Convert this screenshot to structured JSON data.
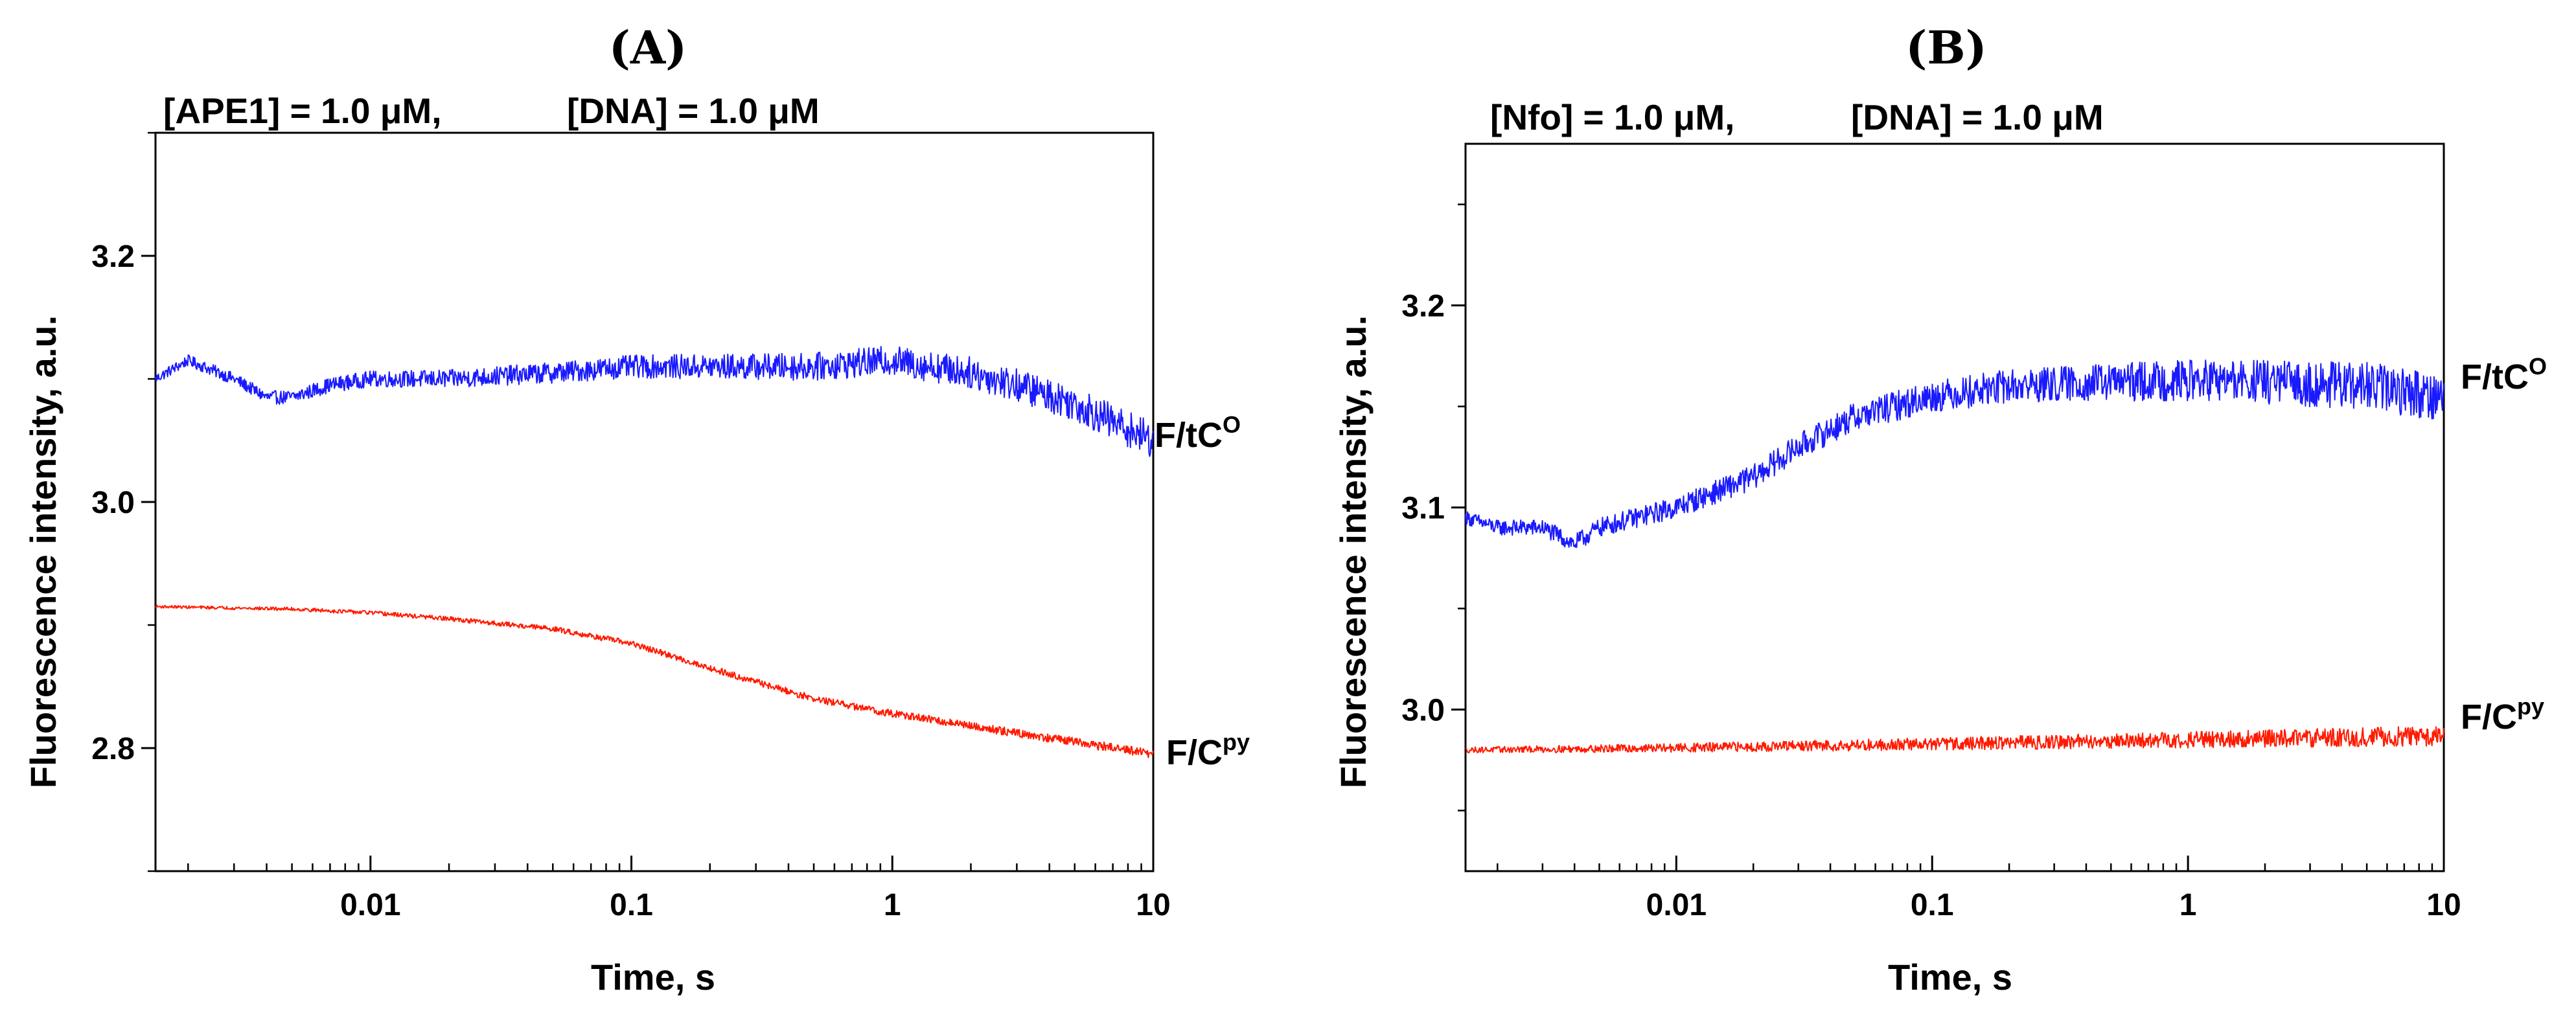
{
  "figure": {
    "panels": [
      {
        "label": "(A)",
        "condition_enzyme": "[APE1] = 1.0 μM,",
        "condition_dna": "[DNA] = 1.0 μM"
      },
      {
        "label": "(B)",
        "condition_enzyme": "[Nfo] = 1.0 μM,",
        "condition_dna": "[DNA] = 1.0 μM"
      }
    ]
  },
  "colors": {
    "series_1": "#1a1aff",
    "series_2": "#ff1a00",
    "axes": "#000000"
  },
  "chart_data": [
    {
      "type": "line",
      "title": "(A)",
      "xlabel": "Time, s",
      "ylabel": "Fluorescence intensity, a.u.",
      "xscale": "log",
      "xlim": [
        0.0015,
        10
      ],
      "ylim": [
        2.7,
        3.3
      ],
      "xticks": [
        0.01,
        0.1,
        1,
        10
      ],
      "xtick_labels": [
        "0.01",
        "0.1",
        "1",
        "10"
      ],
      "yticks": [
        2.8,
        3.0,
        3.2
      ],
      "ytick_labels": [
        "2.8",
        "3.0",
        "3.2"
      ],
      "series": [
        {
          "name": "F/tC",
          "label_base": "F/tC",
          "label_sup": "O",
          "color": "#1a1aff",
          "noise": 0.012,
          "x": [
            0.0015,
            0.002,
            0.003,
            0.004,
            0.005,
            0.007,
            0.01,
            0.02,
            0.05,
            0.1,
            0.2,
            0.5,
            1,
            2,
            3,
            5,
            7,
            10
          ],
          "y": [
            3.1,
            3.115,
            3.1,
            3.085,
            3.085,
            3.095,
            3.1,
            3.1,
            3.105,
            3.11,
            3.11,
            3.11,
            3.115,
            3.105,
            3.095,
            3.08,
            3.065,
            3.05
          ]
        },
        {
          "name": "F/C",
          "label_base": "F/C",
          "label_sup": "py",
          "color": "#ff1a00",
          "noise": 0.003,
          "x": [
            0.0015,
            0.005,
            0.01,
            0.02,
            0.05,
            0.1,
            0.2,
            0.5,
            1,
            2,
            5,
            10
          ],
          "y": [
            2.915,
            2.913,
            2.91,
            2.905,
            2.897,
            2.885,
            2.865,
            2.84,
            2.828,
            2.818,
            2.805,
            2.795
          ]
        }
      ]
    },
    {
      "type": "line",
      "title": "(B)",
      "xlabel": "Time, s",
      "ylabel": "Fluorescence intensity, a.u.",
      "xscale": "log",
      "xlim": [
        0.0015,
        10
      ],
      "ylim": [
        2.92,
        3.28
      ],
      "xticks": [
        0.01,
        0.1,
        1,
        10
      ],
      "xtick_labels": [
        "0.01",
        "0.1",
        "1",
        "10"
      ],
      "yticks": [
        3.0,
        3.1,
        3.2
      ],
      "ytick_labels": [
        "3.0",
        "3.1",
        "3.2"
      ],
      "series": [
        {
          "name": "F/tC",
          "label_base": "F/tC",
          "label_sup": "O",
          "color": "#1a1aff",
          "noise": 0.01,
          "x": [
            0.0015,
            0.002,
            0.003,
            0.004,
            0.005,
            0.007,
            0.01,
            0.02,
            0.03,
            0.05,
            0.1,
            0.2,
            0.5,
            1,
            2,
            5,
            10
          ],
          "y": [
            3.095,
            3.09,
            3.09,
            3.082,
            3.09,
            3.095,
            3.1,
            3.115,
            3.13,
            3.145,
            3.155,
            3.16,
            3.162,
            3.163,
            3.162,
            3.16,
            3.155
          ]
        },
        {
          "name": "F/C",
          "label_base": "F/C",
          "label_sup": "py",
          "color": "#ff1a00",
          "noise": 0.004,
          "x": [
            0.0015,
            0.01,
            0.1,
            1,
            10
          ],
          "y": [
            2.98,
            2.981,
            2.983,
            2.985,
            2.987
          ]
        }
      ]
    }
  ]
}
